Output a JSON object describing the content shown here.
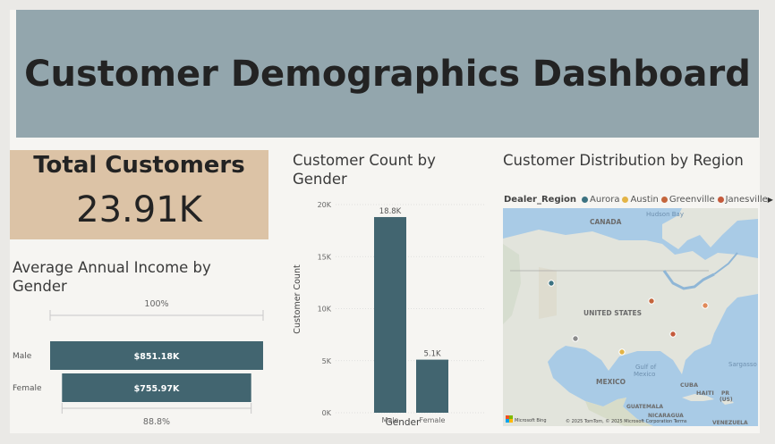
{
  "header": {
    "title": "Customer Demographics Dashboard"
  },
  "kpi": {
    "label": "Total Customers",
    "value": "23.91K"
  },
  "income_chart": {
    "title": "Average Annual Income by Gender",
    "top_label": "100%",
    "bottom_label": "88.8%",
    "color": "#426570",
    "chart_data": {
      "type": "bar",
      "orientation": "horizontal",
      "categories": [
        "Male",
        "Female"
      ],
      "values": [
        851.18,
        755.97
      ],
      "value_labels": [
        "$851.18K",
        "$755.97K"
      ]
    }
  },
  "count_chart": {
    "title": "Customer Count by Gender",
    "xlabel": "Gender",
    "ylabel": "Customer Count",
    "color": "#426570",
    "chart_data": {
      "type": "bar",
      "categories": [
        "Male",
        "Female"
      ],
      "values": [
        18800,
        5100
      ],
      "value_labels": [
        "18.8K",
        "5.1K"
      ],
      "ylim": [
        0,
        20000
      ],
      "yticks": [
        {
          "value": 0,
          "label": "0K"
        },
        {
          "value": 5000,
          "label": "5K"
        },
        {
          "value": 10000,
          "label": "10K"
        },
        {
          "value": 15000,
          "label": "15K"
        },
        {
          "value": 20000,
          "label": "20K"
        }
      ],
      "grid": true
    }
  },
  "map": {
    "title": "Customer Distribution by Region",
    "legend_title": "Dealer_Region",
    "legend_items": [
      {
        "name": "Aurora",
        "color": "#3c7281"
      },
      {
        "name": "Austin",
        "color": "#e3b446"
      },
      {
        "name": "Greenville",
        "color": "#c4653c"
      },
      {
        "name": "Janesville",
        "color": "#c45a3c"
      }
    ],
    "labels": {
      "canada": "CANADA",
      "hudson": "Hudson Bay",
      "us": "UNITED STATES",
      "gulf1": "Gulf of",
      "gulf2": "Mexico",
      "mexico": "MEXICO",
      "cuba": "CUBA",
      "haiti": "HAITI",
      "pr1": "PR",
      "pr2": "(US)",
      "guatemala": "GUATEMALA",
      "nicaragua": "NICARAGUA",
      "sargasso": "Sargasso",
      "venezuela": "VENEZUELA",
      "attribution": "© 2025 TomTom, © 2025 Microsoft Corporation  Terms",
      "bing": "Microsoft Bing"
    },
    "pins": [
      {
        "color": "#3c7281"
      },
      {
        "color": "#8b8b8b"
      },
      {
        "color": "#e3b446"
      },
      {
        "color": "#c4653c"
      },
      {
        "color": "#e08a5a"
      },
      {
        "color": "#c45a3c"
      }
    ]
  }
}
